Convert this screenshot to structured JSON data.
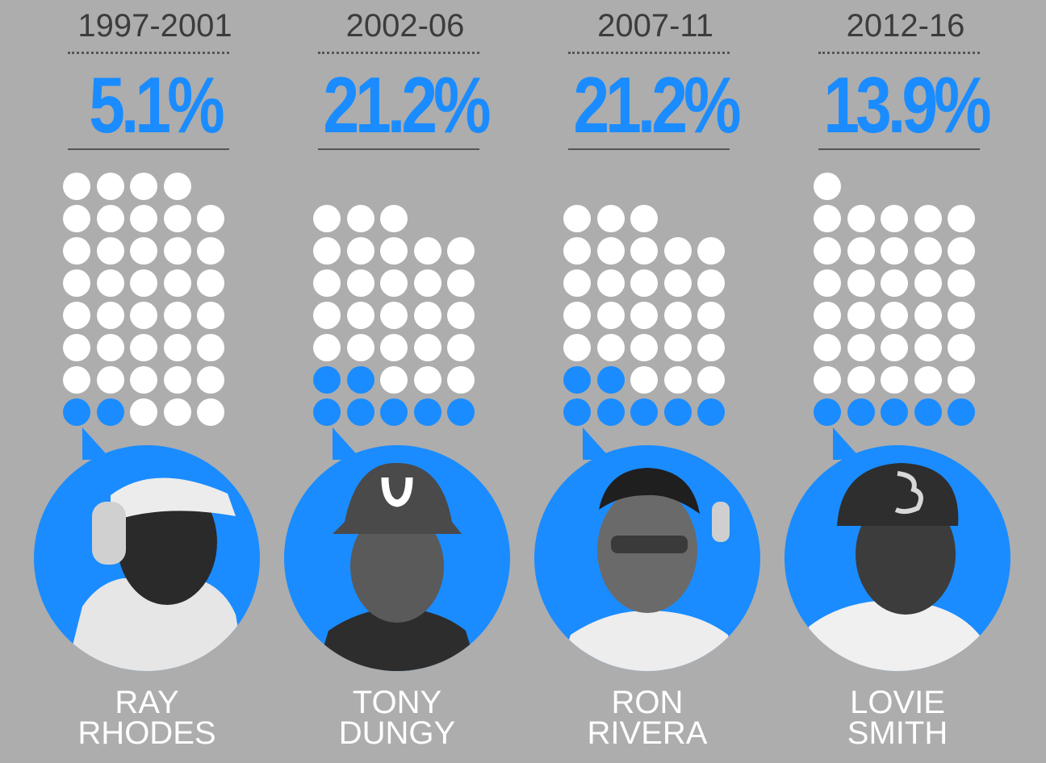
{
  "chart_data": {
    "type": "waffle",
    "unit_note": "",
    "colors": {
      "highlight": "#1a8cff",
      "base": "#ffffff",
      "background": "#adadad"
    },
    "panels": [
      {
        "period": "1997-2001",
        "percent_label": "5.1%",
        "value": 5.1,
        "total_dots": 39,
        "highlighted_dots": 2,
        "name_line1": "RAY",
        "name_line2": "RHODES",
        "portrait": "ray-rhodes-portrait"
      },
      {
        "period": "2002-06",
        "percent_label": "21.2%",
        "value": 21.2,
        "total_dots": 33,
        "highlighted_dots": 7,
        "name_line1": "TONY",
        "name_line2": "DUNGY",
        "portrait": "tony-dungy-portrait"
      },
      {
        "period": "2007-11",
        "percent_label": "21.2%",
        "value": 21.2,
        "total_dots": 33,
        "highlighted_dots": 7,
        "name_line1": "RON",
        "name_line2": "RIVERA",
        "portrait": "ron-rivera-portrait"
      },
      {
        "period": "2012-16",
        "percent_label": "13.9%",
        "value": 13.9,
        "total_dots": 36,
        "highlighted_dots": 5,
        "name_line1": "LOVIE",
        "name_line2": "SMITH",
        "portrait": "lovie-smith-portrait"
      }
    ]
  }
}
